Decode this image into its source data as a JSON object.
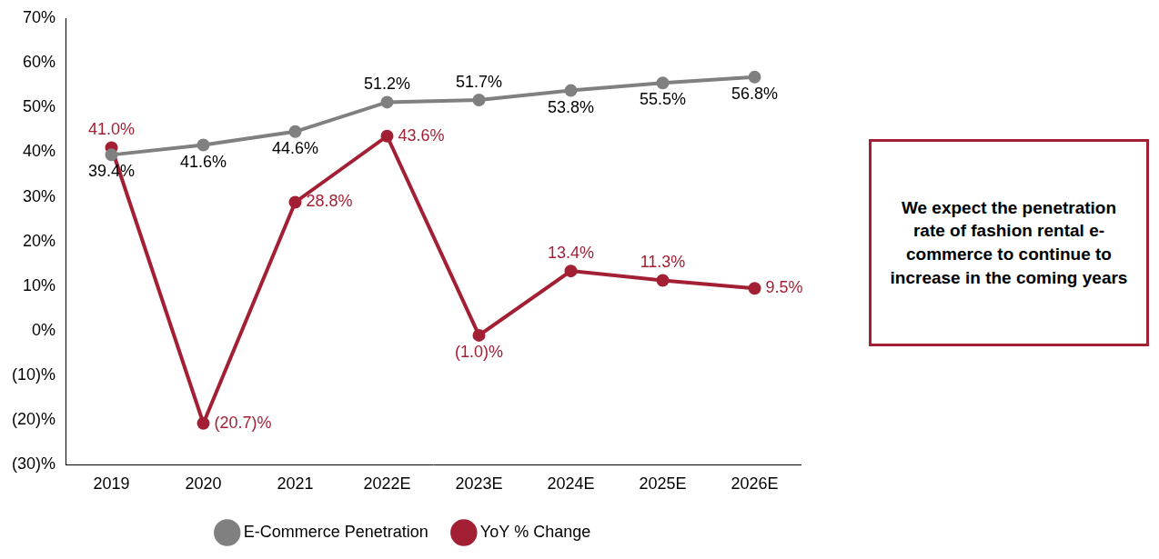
{
  "chart_data": {
    "type": "line",
    "categories": [
      "2019",
      "2020",
      "2021",
      "2022E",
      "2023E",
      "2024E",
      "2025E",
      "2026E"
    ],
    "series": [
      {
        "name": "E-Commerce Penetration",
        "color": "#808080",
        "marker": "circle",
        "values": [
          39.4,
          41.6,
          44.6,
          51.2,
          51.7,
          53.8,
          55.5,
          56.8
        ],
        "value_labels": [
          "39.4%",
          "41.6%",
          "44.6%",
          "51.2%",
          "51.7%",
          "53.8%",
          "55.5%",
          "56.8%"
        ]
      },
      {
        "name": "YoY % Change",
        "color": "#a31f34",
        "marker": "circle",
        "values": [
          41.0,
          -20.7,
          28.8,
          43.6,
          -1.0,
          13.4,
          11.3,
          9.5
        ],
        "value_labels": [
          "41.0%",
          "(20.7)%",
          "28.8%",
          "43.6%",
          "(1.0)%",
          "13.4%",
          "11.3%",
          "9.5%"
        ]
      }
    ],
    "ylim": [
      -30,
      70
    ],
    "yticks": [
      {
        "value": -30,
        "label": "(30)%"
      },
      {
        "value": -20,
        "label": "(20)%"
      },
      {
        "value": -10,
        "label": "(10)%"
      },
      {
        "value": 0,
        "label": "0%"
      },
      {
        "value": 10,
        "label": "10%"
      },
      {
        "value": 20,
        "label": "20%"
      },
      {
        "value": 30,
        "label": "30%"
      },
      {
        "value": 40,
        "label": "40%"
      },
      {
        "value": 50,
        "label": "50%"
      },
      {
        "value": 60,
        "label": "60%"
      },
      {
        "value": 70,
        "label": "70%"
      }
    ],
    "grid": false,
    "legend": "bottom",
    "data_labels": true,
    "annotation": "We expect the penetration rate of fashion rental e-commerce to continue to increase in the coming years"
  }
}
